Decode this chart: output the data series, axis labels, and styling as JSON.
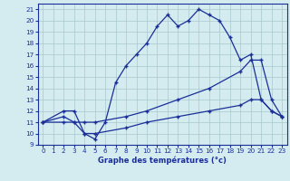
{
  "title": "Graphe des températures (°c)",
  "bg_color": "#d4ecef",
  "line_color": "#1a2e99",
  "grid_color": "#a8c8cc",
  "xlim": [
    -0.5,
    23.5
  ],
  "ylim": [
    9,
    21.5
  ],
  "xticks": [
    0,
    1,
    2,
    3,
    4,
    5,
    6,
    7,
    8,
    9,
    10,
    11,
    12,
    13,
    14,
    15,
    16,
    17,
    18,
    19,
    20,
    21,
    22,
    23
  ],
  "yticks": [
    9,
    10,
    11,
    12,
    13,
    14,
    15,
    16,
    17,
    18,
    19,
    20,
    21
  ],
  "line1_x": [
    0,
    2,
    3,
    4,
    5,
    6,
    7,
    8,
    9,
    10,
    11,
    12,
    13,
    14,
    15,
    16,
    17,
    18,
    19,
    20,
    21,
    22,
    23
  ],
  "line1_y": [
    11,
    12,
    12,
    10,
    9.5,
    11,
    14.5,
    16,
    17,
    18,
    19.5,
    20.5,
    19.5,
    20,
    21,
    20.5,
    20,
    18.5,
    16.5,
    17,
    13,
    12,
    11.5
  ],
  "line2_x": [
    0,
    2,
    3,
    4,
    5,
    8,
    10,
    13,
    16,
    19,
    20,
    21,
    22,
    23
  ],
  "line2_y": [
    11,
    11.5,
    11,
    11,
    11,
    11.5,
    12,
    13,
    14,
    15.5,
    16.5,
    16.5,
    13,
    11.5
  ],
  "line3_x": [
    0,
    2,
    3,
    4,
    5,
    8,
    10,
    13,
    16,
    19,
    20,
    21,
    22,
    23
  ],
  "line3_y": [
    11,
    11,
    11,
    10,
    10,
    10.5,
    11,
    11.5,
    12,
    12.5,
    13,
    13,
    12,
    11.5
  ]
}
